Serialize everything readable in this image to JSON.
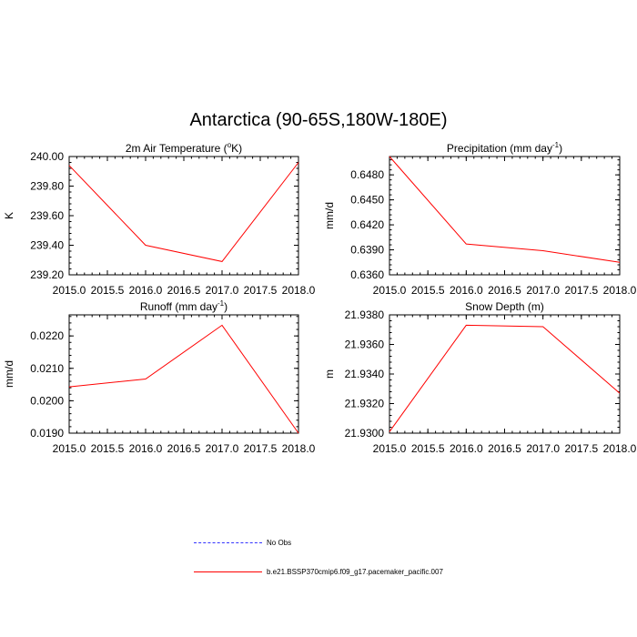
{
  "figure": {
    "title": "Antarctica (90-65S,180W-180E)",
    "line_color": "#ff0000",
    "obs_color": "#0000ff"
  },
  "legend": {
    "obs_label": "No Obs",
    "model_label": "b.e21.BSSP370cmip6.f09_g17.pacemaker_pacific.007"
  },
  "chart_data": [
    {
      "type": "line",
      "title_main": "2m Air Temperature (",
      "title_sup": "o",
      "title_end": "K)",
      "ylabel": "K",
      "x": [
        2015.0,
        2016.0,
        2017.0,
        2018.0
      ],
      "xlim": [
        2015.0,
        2018.0
      ],
      "xticks": [
        "2015.0",
        "2015.5",
        "2016.0",
        "2016.5",
        "2017.0",
        "2017.5",
        "2018.0"
      ],
      "ylim": [
        239.2,
        240.0
      ],
      "yticks": [
        "239.20",
        "239.40",
        "239.60",
        "239.80",
        "240.00"
      ],
      "series": [
        {
          "name": "b.e21.BSSP370cmip6.f09_g17.pacemaker_pacific.007",
          "values": [
            239.94,
            239.4,
            239.29,
            239.96
          ]
        }
      ]
    },
    {
      "type": "line",
      "title_main": "Precipitation (mm day",
      "title_sup": "-1",
      "title_end": ")",
      "ylabel": "mm/d",
      "x": [
        2015.0,
        2016.0,
        2017.0,
        2018.0
      ],
      "xlim": [
        2015.0,
        2018.0
      ],
      "xticks": [
        "2015.0",
        "2015.5",
        "2016.0",
        "2016.5",
        "2017.0",
        "2017.5",
        "2018.0"
      ],
      "ylim": [
        0.636,
        0.6502
      ],
      "yticks": [
        "0.6360",
        "0.6390",
        "0.6420",
        "0.6450",
        "0.6480"
      ],
      "series": [
        {
          "name": "b.e21.BSSP370cmip6.f09_g17.pacemaker_pacific.007",
          "values": [
            0.6502,
            0.6397,
            0.6389,
            0.6375
          ]
        }
      ]
    },
    {
      "type": "line",
      "title_main": "Runoff (mm day",
      "title_sup": "-1",
      "title_end": ")",
      "ylabel": "mm/d",
      "x": [
        2015.0,
        2016.0,
        2017.0,
        2018.0
      ],
      "xlim": [
        2015.0,
        2018.0
      ],
      "xticks": [
        "2015.0",
        "2015.5",
        "2016.0",
        "2016.5",
        "2017.0",
        "2017.5",
        "2018.0"
      ],
      "ylim": [
        0.019,
        0.02265
      ],
      "yticks": [
        "0.0190",
        "0.0200",
        "0.0210",
        "0.0220"
      ],
      "series": [
        {
          "name": "b.e21.BSSP370cmip6.f09_g17.pacemaker_pacific.007",
          "values": [
            0.02043,
            0.02067,
            0.02233,
            0.019
          ]
        }
      ]
    },
    {
      "type": "line",
      "title_main": "Snow Depth (m)",
      "title_sup": "",
      "title_end": "",
      "ylabel": "m",
      "x": [
        2015.0,
        2016.0,
        2017.0,
        2018.0
      ],
      "xlim": [
        2015.0,
        2018.0
      ],
      "xticks": [
        "2015.0",
        "2015.5",
        "2016.0",
        "2016.5",
        "2017.0",
        "2017.5",
        "2018.0"
      ],
      "ylim": [
        21.93,
        21.938
      ],
      "yticks": [
        "21.9300",
        "21.9320",
        "21.9340",
        "21.9360",
        "21.9380"
      ],
      "series": [
        {
          "name": "b.e21.BSSP370cmip6.f09_g17.pacemaker_pacific.007",
          "values": [
            21.9301,
            21.9373,
            21.9372,
            21.9327
          ]
        }
      ]
    }
  ]
}
